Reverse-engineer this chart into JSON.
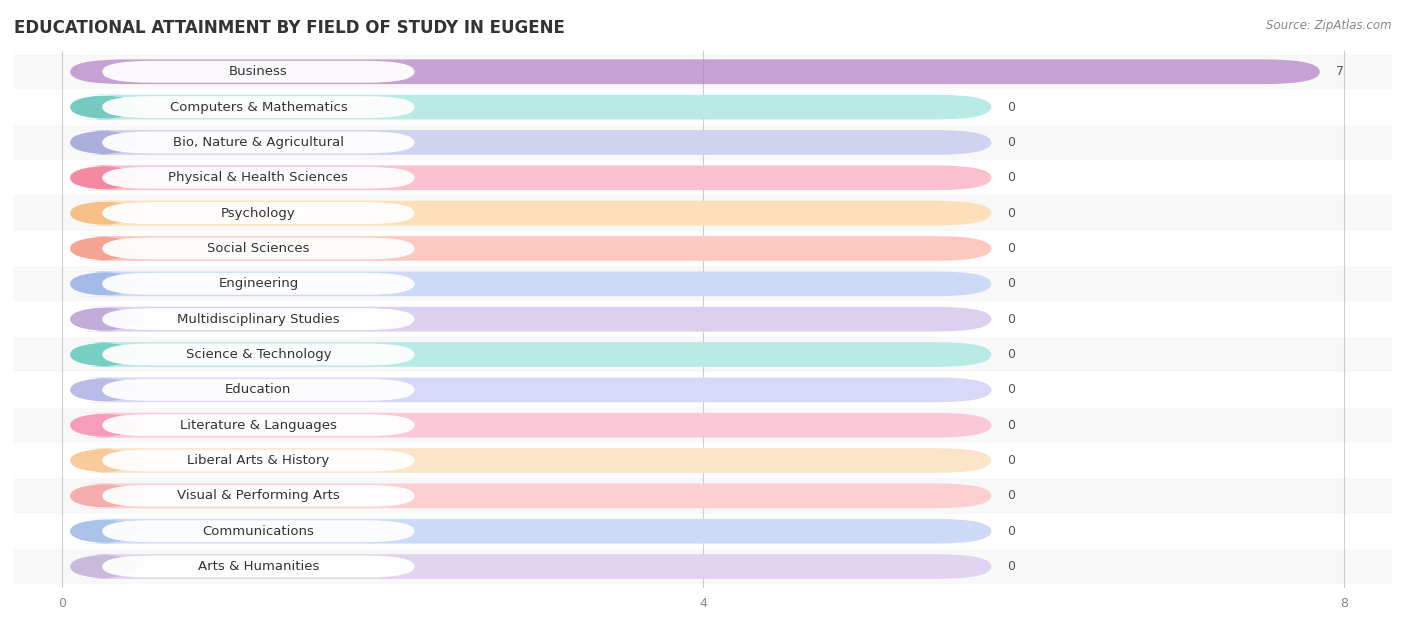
{
  "title": "EDUCATIONAL ATTAINMENT BY FIELD OF STUDY IN EUGENE",
  "source": "Source: ZipAtlas.com",
  "categories": [
    "Business",
    "Computers & Mathematics",
    "Bio, Nature & Agricultural",
    "Physical & Health Sciences",
    "Psychology",
    "Social Sciences",
    "Engineering",
    "Multidisciplinary Studies",
    "Science & Technology",
    "Education",
    "Literature & Languages",
    "Liberal Arts & History",
    "Visual & Performing Arts",
    "Communications",
    "Arts & Humanities"
  ],
  "values": [
    7,
    0,
    0,
    0,
    0,
    0,
    0,
    0,
    0,
    0,
    0,
    0,
    0,
    0,
    0
  ],
  "bar_colors": [
    "#b585c5",
    "#6ec8be",
    "#a8acdc",
    "#f285a0",
    "#f5bc80",
    "#f5a090",
    "#a0b8e8",
    "#c0a8d8",
    "#6eccc0",
    "#b8b8e8",
    "#f898b8",
    "#f8c898",
    "#f5a8a8",
    "#a8c0e8",
    "#c8b8d8"
  ],
  "bar_colors_light": [
    "#d8b8e8",
    "#b8eae6",
    "#d0d2f0",
    "#fcc0d0",
    "#fde0b8",
    "#fdc8c0",
    "#ccdaf8",
    "#dcd0f0",
    "#b8eae6",
    "#d8d8f8",
    "#fcc8d8",
    "#fce4c8",
    "#fcd0d0",
    "#ccdaf8",
    "#e0d4f0"
  ],
  "xlim": [
    0,
    8
  ],
  "xticks": [
    0,
    4,
    8
  ],
  "background_color": "#ffffff",
  "row_colors": [
    "#f8f8f8",
    "#ffffff"
  ],
  "title_fontsize": 12,
  "label_fontsize": 9.5,
  "value_fontsize": 9
}
